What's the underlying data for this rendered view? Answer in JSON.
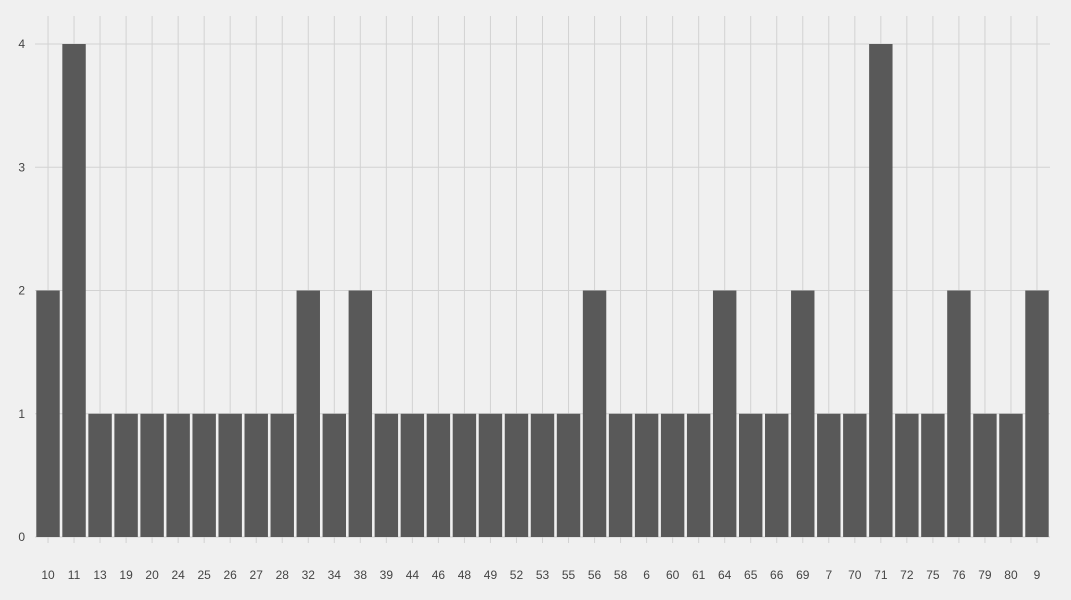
{
  "chart_data": {
    "type": "bar",
    "categories": [
      "10",
      "11",
      "13",
      "19",
      "20",
      "24",
      "25",
      "26",
      "27",
      "28",
      "32",
      "34",
      "38",
      "39",
      "44",
      "46",
      "48",
      "49",
      "52",
      "53",
      "55",
      "56",
      "58",
      "6",
      "60",
      "61",
      "64",
      "65",
      "66",
      "69",
      "7",
      "70",
      "71",
      "72",
      "75",
      "76",
      "79",
      "80",
      "9"
    ],
    "values": [
      2,
      4,
      1,
      1,
      1,
      1,
      1,
      1,
      1,
      1,
      2,
      1,
      2,
      1,
      1,
      1,
      1,
      1,
      1,
      1,
      1,
      2,
      1,
      1,
      1,
      1,
      2,
      1,
      1,
      2,
      1,
      1,
      4,
      1,
      1,
      2,
      1,
      1,
      2
    ],
    "title": "",
    "xlabel": "",
    "ylabel": "",
    "ylim": [
      0,
      4
    ],
    "yticks": [
      0,
      1,
      2,
      3,
      4
    ],
    "grid": true,
    "colors": {
      "bar": "#595959",
      "background": "#f0f0f0",
      "grid": "#d2d2d2",
      "text": "#444444"
    }
  }
}
